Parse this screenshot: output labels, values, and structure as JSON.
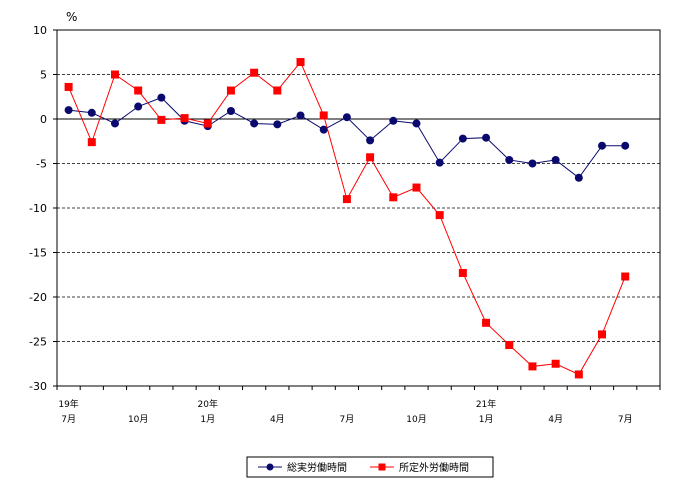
{
  "chart_data": {
    "type": "line",
    "y_unit_label": "%",
    "ylim": [
      -30,
      10
    ],
    "y_ticks": [
      10,
      5,
      0,
      -5,
      -10,
      -15,
      -20,
      -25,
      -30
    ],
    "grid": "dashed-horizontal",
    "legend_placement": "bottom-center",
    "x_count": 26,
    "x_tick_labels": [
      {
        "index": 0,
        "year": "19年",
        "month": "7月"
      },
      {
        "index": 3,
        "year": "",
        "month": "10月"
      },
      {
        "index": 6,
        "year": "20年",
        "month": "1月"
      },
      {
        "index": 9,
        "year": "",
        "month": "4月"
      },
      {
        "index": 12,
        "year": "",
        "month": "7月"
      },
      {
        "index": 15,
        "year": "",
        "month": "10月"
      },
      {
        "index": 18,
        "year": "21年",
        "month": "1月"
      },
      {
        "index": 21,
        "year": "",
        "month": "4月"
      },
      {
        "index": 24,
        "year": "",
        "month": "7月"
      }
    ],
    "series": [
      {
        "name": "総実労働時間",
        "color": "#0a0a6e",
        "marker": "circle",
        "values": [
          1.0,
          0.7,
          -0.5,
          1.4,
          2.4,
          -0.2,
          -0.8,
          0.9,
          -0.5,
          -0.6,
          0.4,
          -1.2,
          0.2,
          -2.4,
          -0.2,
          -0.5,
          -4.9,
          -2.2,
          -2.1,
          -4.6,
          -5.0,
          -4.6,
          -6.6,
          -3.0,
          -3.0
        ]
      },
      {
        "name": "所定外労働時間",
        "color": "#ff0000",
        "marker": "square",
        "values": [
          3.6,
          -2.6,
          5.0,
          3.2,
          -0.1,
          0.1,
          -0.5,
          3.2,
          5.2,
          3.2,
          6.4,
          0.4,
          -9.0,
          -4.3,
          -8.8,
          -7.7,
          -10.8,
          -17.3,
          -22.9,
          -25.4,
          -27.8,
          -27.5,
          -28.7,
          -24.2,
          -17.7
        ]
      }
    ]
  }
}
